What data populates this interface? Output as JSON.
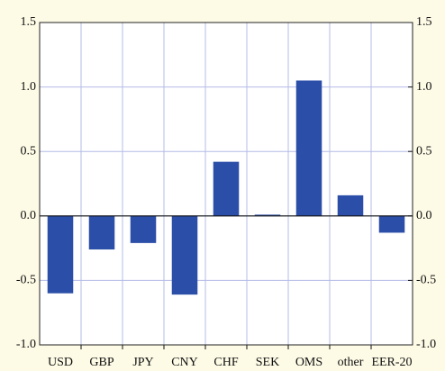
{
  "chart_data": {
    "type": "bar",
    "categories": [
      "USD",
      "GBP",
      "JPY",
      "CNY",
      "CHF",
      "SEK",
      "OMS",
      "other",
      "EER-20"
    ],
    "values": [
      -0.6,
      -0.26,
      -0.21,
      -0.61,
      0.42,
      0.01,
      1.05,
      0.16,
      -0.13
    ],
    "color": "#2b4ea8",
    "ylim": [
      -1.0,
      1.5
    ],
    "yticks": [
      {
        "value": -1.0,
        "label": "-1.0"
      },
      {
        "value": -0.5,
        "label": "-0.5"
      },
      {
        "value": 0.0,
        "label": "0.0"
      },
      {
        "value": 0.5,
        "label": "0.5"
      },
      {
        "value": 1.0,
        "label": "1.0"
      },
      {
        "value": 1.5,
        "label": "1.5"
      }
    ],
    "y2lim": [
      -1.0,
      1.5
    ],
    "y2ticks": [
      {
        "value": -1.0,
        "label": "-1.0"
      },
      {
        "value": -0.5,
        "label": "-0.5"
      },
      {
        "value": 0.0,
        "label": "0.0"
      },
      {
        "value": 0.5,
        "label": "0.5"
      },
      {
        "value": 1.0,
        "label": "1.0"
      },
      {
        "value": 1.5,
        "label": "1.5"
      }
    ],
    "grid": true
  }
}
